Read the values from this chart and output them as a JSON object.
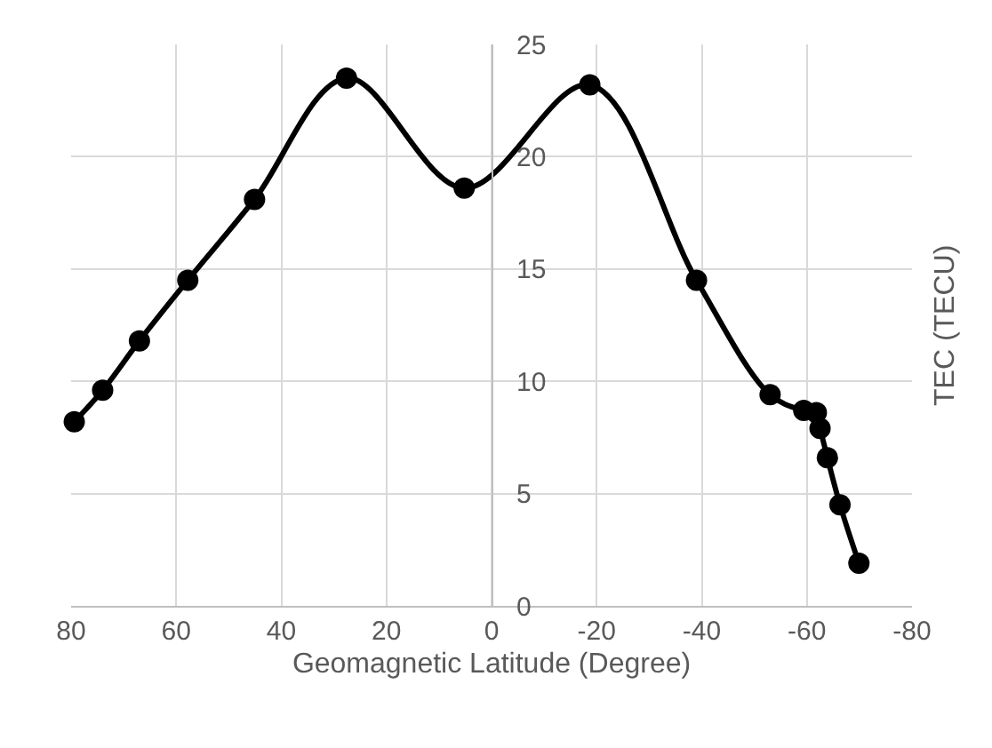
{
  "chart_data": {
    "type": "line",
    "xlabel": "Geomagnetic Latitude (Degree)",
    "ylabel": "TEC (TECU)",
    "series": [
      {
        "color": "#000000",
        "x": [
          79.4,
          74,
          67,
          57.8,
          45.1,
          27.6,
          5.2,
          -18.7,
          -39,
          -53,
          -59.4,
          -61.8,
          -62.5,
          -63.9,
          -66.3,
          -69.9
        ],
        "values": [
          8.2,
          9.6,
          11.8,
          14.5,
          18.1,
          23.5,
          18.6,
          23.2,
          14.5,
          9.4,
          8.7,
          8.6,
          7.9,
          6.6,
          4.5,
          1.9
        ]
      }
    ],
    "xlim": [
      80,
      -80
    ],
    "xticks": [
      80,
      60,
      40,
      20,
      0,
      -20,
      -40,
      -60,
      -80
    ],
    "ylim": [
      0,
      25
    ],
    "yticks": [
      0,
      5,
      10,
      15,
      20,
      25
    ],
    "grid": true,
    "marker": "circle",
    "line_style": "solid"
  }
}
